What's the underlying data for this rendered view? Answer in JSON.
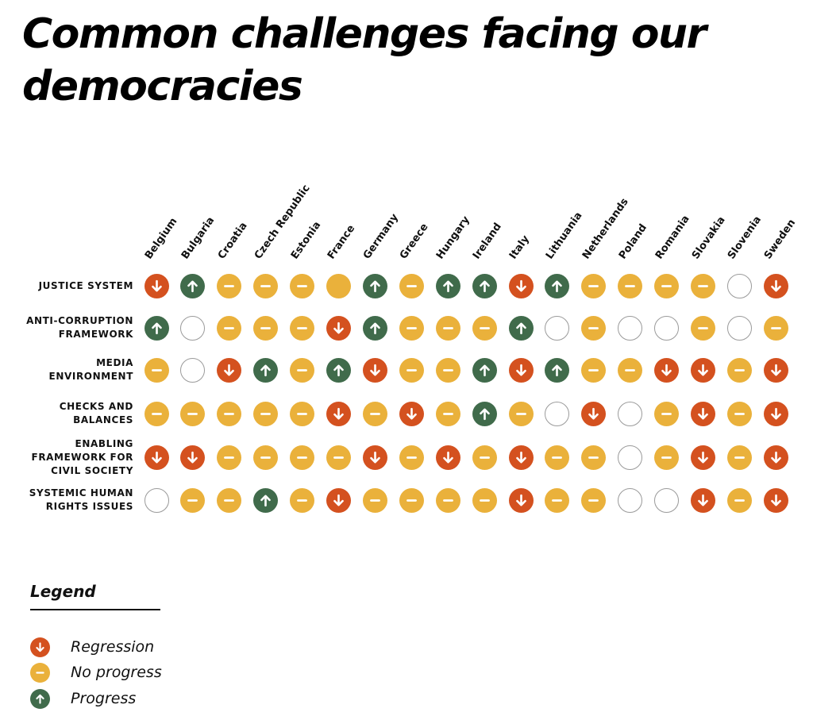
{
  "title": "Common challenges facing our democracies",
  "colors": {
    "regression": "#d4511f",
    "no_progress": "#eab13b",
    "progress": "#406b4b",
    "blank_border": "#9a9a9a"
  },
  "chart_data": {
    "type": "table",
    "title": "Common challenges facing our democracies",
    "columns": [
      "Belgium",
      "Bulgaria",
      "Croatia",
      "Czech Republic",
      "Estonia",
      "France",
      "Germany",
      "Greece",
      "Hungary",
      "Ireland",
      "Italy",
      "Lithuania",
      "Netherlands",
      "Poland",
      "Romania",
      "Slovakia",
      "Slovenia",
      "Sweden"
    ],
    "rows": [
      {
        "label_lines": [
          "Justice system"
        ],
        "values": [
          "regression",
          "progress",
          "no_progress",
          "no_progress",
          "no_progress",
          "no_progress_plain",
          "progress",
          "no_progress",
          "progress",
          "progress",
          "regression",
          "progress",
          "no_progress",
          "no_progress",
          "no_progress",
          "no_progress",
          "none",
          "regression"
        ]
      },
      {
        "label_lines": [
          "Anti-corruption",
          "framework"
        ],
        "values": [
          "progress",
          "none",
          "no_progress",
          "no_progress",
          "no_progress",
          "regression",
          "progress",
          "no_progress",
          "no_progress",
          "no_progress",
          "progress",
          "none",
          "no_progress",
          "none",
          "none",
          "no_progress",
          "none",
          "no_progress"
        ]
      },
      {
        "label_lines": [
          "Media",
          "environment"
        ],
        "values": [
          "no_progress",
          "none",
          "regression",
          "progress",
          "no_progress",
          "progress",
          "regression",
          "no_progress",
          "no_progress",
          "progress",
          "regression",
          "progress",
          "no_progress",
          "no_progress",
          "regression",
          "regression",
          "no_progress",
          "regression"
        ]
      },
      {
        "label_lines": [
          "Checks and",
          "balances"
        ],
        "values": [
          "no_progress",
          "no_progress",
          "no_progress",
          "no_progress",
          "no_progress",
          "regression",
          "no_progress",
          "regression",
          "no_progress",
          "progress",
          "no_progress",
          "none",
          "regression",
          "none",
          "no_progress",
          "regression",
          "no_progress",
          "regression"
        ]
      },
      {
        "label_lines": [
          "Enabling",
          "framework for",
          "civil society"
        ],
        "values": [
          "regression",
          "regression",
          "no_progress",
          "no_progress",
          "no_progress",
          "no_progress",
          "regression",
          "no_progress",
          "regression",
          "no_progress",
          "regression",
          "no_progress",
          "no_progress",
          "none",
          "no_progress",
          "regression",
          "no_progress",
          "regression"
        ]
      },
      {
        "label_lines": [
          "Systemic human",
          "rights issues"
        ],
        "values": [
          "none",
          "no_progress",
          "no_progress",
          "progress",
          "no_progress",
          "regression",
          "no_progress",
          "no_progress",
          "no_progress",
          "no_progress",
          "regression",
          "no_progress",
          "no_progress",
          "none",
          "none",
          "regression",
          "no_progress",
          "regression"
        ]
      }
    ]
  },
  "legend": {
    "title": "Legend",
    "items": [
      {
        "status": "regression",
        "label": "Regression",
        "icon": "arrow-down-icon"
      },
      {
        "status": "no_progress",
        "label": "No progress",
        "icon": "minus-icon"
      },
      {
        "status": "progress",
        "label": "Progress",
        "icon": "arrow-up-icon"
      }
    ]
  }
}
